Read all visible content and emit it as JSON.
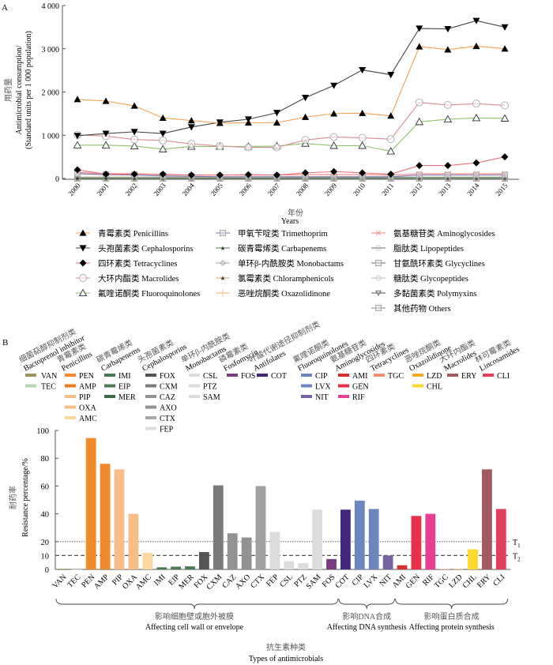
{
  "chart_data": [
    {
      "panel_label": "A",
      "type": "line",
      "ylabel_cn": "用药量",
      "ylabel_en_1": "Antimicrobial consumption/",
      "ylabel_en_2": "(Standard units per 1 000 population)",
      "xlabel_cn": "年份",
      "xlabel_en": "Years",
      "ylim": [
        0,
        4000
      ],
      "yticks": [
        0,
        1000,
        2000,
        3000,
        4000
      ],
      "ytick_labels": [
        "0",
        "1 000",
        "2 000",
        "3 000",
        "4 000"
      ],
      "x": [
        "2000",
        "2001",
        "2002",
        "2003",
        "2004",
        "2005",
        "2006",
        "2007",
        "2008",
        "2009",
        "2010",
        "2011",
        "2012",
        "2013",
        "2014",
        "2015"
      ],
      "series": [
        {
          "cn": "青霉素类",
          "en": "Penicillins",
          "color": "#f5a050",
          "marker": "triangle-up-filled",
          "values": [
            1830,
            1790,
            1680,
            1400,
            1340,
            1280,
            1290,
            1290,
            1420,
            1500,
            1510,
            1450,
            3050,
            2980,
            3060,
            3000
          ]
        },
        {
          "cn": "头孢菌素类",
          "en": "Cephalosporins",
          "color": "#444444",
          "marker": "triangle-down-filled",
          "values": [
            990,
            1040,
            1080,
            1040,
            1190,
            1300,
            1370,
            1520,
            1870,
            2150,
            2510,
            2400,
            3470,
            3460,
            3650,
            3500
          ]
        },
        {
          "cn": "四环素类",
          "en": "Tetracyclines",
          "color": "#e8737a",
          "marker": "diamond-filled",
          "values": [
            200,
            100,
            100,
            100,
            80,
            80,
            90,
            80,
            130,
            160,
            130,
            100,
            300,
            300,
            360,
            500
          ]
        },
        {
          "cn": "大环内酯类",
          "en": "Macrolides",
          "color": "#d98a92",
          "marker": "circle-open",
          "values": [
            1010,
            980,
            900,
            880,
            800,
            750,
            720,
            720,
            890,
            960,
            940,
            910,
            1760,
            1700,
            1730,
            1690
          ]
        },
        {
          "cn": "氟喹诺酮类",
          "en": "Fluoroquinolones",
          "color": "#8cc46a",
          "marker": "triangle-up-open",
          "values": [
            770,
            770,
            750,
            680,
            740,
            740,
            740,
            750,
            810,
            760,
            760,
            630,
            1310,
            1370,
            1400,
            1390
          ]
        },
        {
          "cn": "甲氧苄啶类",
          "en": "Trimethoprim",
          "color": "#7d6cb0",
          "marker": "square-plus",
          "values": [
            110,
            90,
            80,
            60,
            50,
            40,
            40,
            40,
            40,
            40,
            40,
            40,
            80,
            80,
            80,
            80
          ]
        },
        {
          "cn": "碳青霉烯类",
          "en": "Carbapenems",
          "color": "#4a8a4a",
          "marker": "star-small",
          "values": [
            5,
            5,
            5,
            5,
            5,
            5,
            5,
            5,
            10,
            10,
            10,
            10,
            15,
            15,
            15,
            15
          ]
        },
        {
          "cn": "单环β-内酰胺类",
          "en": "Monobactams",
          "color": "#aaaaaa",
          "marker": "diamond-open",
          "values": [
            2,
            2,
            2,
            2,
            2,
            2,
            2,
            2,
            2,
            2,
            2,
            2,
            2,
            2,
            2,
            2
          ]
        },
        {
          "cn": "氯霉素类",
          "en": "Chloramphenicols",
          "color": "#f5a050",
          "marker": "star-filled",
          "values": [
            10,
            10,
            10,
            10,
            10,
            10,
            10,
            10,
            10,
            10,
            10,
            10,
            10,
            10,
            10,
            10
          ]
        },
        {
          "cn": "恶唑烷酮类",
          "en": "Oxazolidinone",
          "color": "#f5b070",
          "marker": "plus",
          "values": [
            0,
            0,
            0,
            0,
            0,
            0,
            0,
            0,
            5,
            5,
            5,
            5,
            10,
            10,
            10,
            10
          ]
        },
        {
          "cn": "氨基糖苷类",
          "en": "Aminoglycosides",
          "color": "#f08080",
          "marker": "x",
          "values": [
            140,
            110,
            110,
            90,
            80,
            80,
            80,
            80,
            90,
            90,
            90,
            80,
            110,
            110,
            110,
            110
          ]
        },
        {
          "cn": "脂肽类",
          "en": "Lipopeptides",
          "color": "#666666",
          "marker": "circle-line",
          "values": [
            0,
            0,
            0,
            0,
            0,
            0,
            0,
            0,
            0,
            0,
            0,
            0,
            1,
            1,
            1,
            1
          ]
        },
        {
          "cn": "甘氨酰环素类",
          "en": "Glycyclines",
          "color": "#666666",
          "marker": "square-line",
          "values": [
            0,
            0,
            0,
            0,
            0,
            0,
            0,
            0,
            0,
            0,
            0,
            0,
            1,
            1,
            1,
            1
          ]
        },
        {
          "cn": "糖肽类",
          "en": "Glycopeptides",
          "color": "#bbbbbb",
          "marker": "circle-open-light",
          "values": [
            20,
            20,
            20,
            20,
            20,
            20,
            20,
            20,
            20,
            20,
            20,
            20,
            25,
            25,
            25,
            25
          ]
        },
        {
          "cn": "多黏菌素类",
          "en": "Polymyxins",
          "color": "#555555",
          "marker": "triangle-down-open",
          "values": [
            3,
            3,
            3,
            3,
            3,
            3,
            3,
            3,
            3,
            3,
            3,
            3,
            3,
            3,
            3,
            3
          ]
        },
        {
          "cn": "其他药物",
          "en": "Others",
          "color": "#888888",
          "marker": "rect-line",
          "values": [
            30,
            30,
            30,
            30,
            30,
            30,
            30,
            30,
            30,
            30,
            30,
            30,
            30,
            30,
            30,
            30
          ]
        }
      ]
    },
    {
      "panel_label": "B",
      "type": "bar",
      "ylabel_cn": "耐药率",
      "ylabel_en": "Resistance percentage/%",
      "xlabel_cn": "抗生素种类",
      "xlabel_en": "Types of antimicrobials",
      "ylim": [
        0,
        100
      ],
      "yticks": [
        0,
        10,
        20,
        40,
        60,
        80,
        100
      ],
      "ytick_labels": [
        "0",
        "10",
        "20",
        "40",
        "60",
        "80",
        "100"
      ],
      "thresholds": [
        {
          "label": "T",
          "sub": "1",
          "value": 20,
          "style": "dotted"
        },
        {
          "label": "T",
          "sub": "2",
          "value": 10,
          "style": "dashed"
        }
      ],
      "categories": [
        "VAN",
        "TEC",
        "PEN",
        "AMP",
        "PIP",
        "OXA",
        "AMC",
        "IMI",
        "EIP",
        "MER",
        "FOX",
        "CXM",
        "CAZ",
        "AXO",
        "CTX",
        "FEP",
        "CSL",
        "PTZ",
        "SAM",
        "FOS",
        "COT",
        "CIP",
        "LVX",
        "NIT",
        "AMI",
        "GEN",
        "RIF",
        "TGC",
        "LZD",
        "CHL",
        "ERY",
        "CLI"
      ],
      "values": [
        0.5,
        0,
        94.5,
        76,
        72,
        40,
        12,
        1.5,
        2,
        2.2,
        12.5,
        60.5,
        26,
        23,
        60,
        27,
        6,
        4.5,
        43,
        7.5,
        43,
        49.5,
        43.5,
        10,
        3,
        38.5,
        40,
        0.3,
        0.2,
        14.5,
        72,
        43.5
      ],
      "colors": [
        "#9a9460",
        "#b9d4b0",
        "#f08a2a",
        "#f08a2a",
        "#f9be86",
        "#f9be86",
        "#fcd7a0",
        "#4a7a52",
        "#4a7a52",
        "#4a7a52",
        "#555555",
        "#7b7b7b",
        "#929292",
        "#929292",
        "#a0a0a0",
        "#dcdcdc",
        "#dcdcdc",
        "#dcdcdc",
        "#dcdcdc",
        "#7a3b80",
        "#44267a",
        "#6b87bd",
        "#6b87bd",
        "#7a62a0",
        "#d3302e",
        "#e8304a",
        "#e84090",
        "#f59070",
        "#f5a820",
        "#fcd92a",
        "#a35a5e",
        "#e2405a"
      ],
      "groups": [
        {
          "cn": "影响细胞壁或胞外被膜",
          "en": "Affecting cell wall or envelope",
          "from": "VAN",
          "to": "FOS"
        },
        {
          "cn": "影响DNA合成",
          "en": "Affecting DNA synthesis",
          "from": "COT",
          "to": "NIT"
        },
        {
          "cn": "影响蛋白质合成",
          "en": "Affecting protein synthesis",
          "from": "AMI",
          "to": "CLI"
        }
      ],
      "legend_classes": [
        {
          "cn": "细菌萜醇抑制剂类",
          "en": "Bactoprenol inhibitor",
          "items": [
            {
              "code": "VAN",
              "color": "#9a9460"
            },
            {
              "code": "TEC",
              "color": "#b9d4b0"
            }
          ]
        },
        {
          "cn": "青霉素类",
          "en": "Penicillins",
          "items": [
            {
              "code": "PEN",
              "color": "#f08a2a"
            },
            {
              "code": "AMP",
              "color": "#f07a1a"
            },
            {
              "code": "PIP",
              "color": "#f9be86"
            },
            {
              "code": "OXA",
              "color": "#f9be86"
            },
            {
              "code": "AMC",
              "color": "#fcd7a0"
            }
          ]
        },
        {
          "cn": "碳青霉烯类",
          "en": "Carbapenems",
          "items": [
            {
              "code": "IMI",
              "color": "#4a7a52"
            },
            {
              "code": "EIP",
              "color": "#4a7a52"
            },
            {
              "code": "MER",
              "color": "#3e6a46"
            }
          ]
        },
        {
          "cn": "头孢菌素类",
          "en": "Cephalosporins",
          "items": [
            {
              "code": "FOX",
              "color": "#555555"
            },
            {
              "code": "CXM",
              "color": "#7b7b7b"
            },
            {
              "code": "CAZ",
              "color": "#929292"
            },
            {
              "code": "AXO",
              "color": "#929292"
            },
            {
              "code": "CTX",
              "color": "#a8a8a8"
            },
            {
              "code": "FEP",
              "color": "#dcdcdc"
            }
          ]
        },
        {
          "cn": "单环β-内酰胺类",
          "en": "Monobactams",
          "items": [
            {
              "code": "CSL",
              "color": "#dcdcdc"
            },
            {
              "code": "PTZ",
              "color": "#dcdcdc"
            },
            {
              "code": "SAM",
              "color": "#dcdcdc"
            }
          ]
        },
        {
          "cn": "磷霉素类",
          "en": "Fosfomycin",
          "items": [
            {
              "code": "FOS",
              "color": "#7a3b80"
            }
          ]
        },
        {
          "cn": "叶酸代谢途径抑制剂类",
          "en": "Antifolates",
          "items": [
            {
              "code": "COT",
              "color": "#44267a"
            }
          ]
        },
        {
          "cn": "氟喹诺酮类",
          "en": "Fluoroquinolones",
          "items": [
            {
              "code": "CIP",
              "color": "#6b87bd"
            },
            {
              "code": "LVX",
              "color": "#6b87bd"
            },
            {
              "code": "NIT",
              "color": "#7a62a0"
            }
          ]
        },
        {
          "cn": "氨基糖苷类",
          "en": "Aminoglycosides",
          "items": [
            {
              "code": "AMI",
              "color": "#d3302e"
            },
            {
              "code": "GEN",
              "color": "#e8304a"
            },
            {
              "code": "RIF",
              "color": "#e84090"
            }
          ]
        },
        {
          "cn": "四环素类",
          "en": "Tetracyclines",
          "items": [
            {
              "code": "TGC",
              "color": "#f59070"
            }
          ]
        },
        {
          "cn": "恶唑烷酮类",
          "en": "Oxazolidinone",
          "items": [
            {
              "code": "LZD",
              "color": "#f5a820"
            },
            {
              "code": "CHL",
              "color": "#fcd92a"
            }
          ]
        },
        {
          "cn": "大环内酯类",
          "en": "Macrolides",
          "items": [
            {
              "code": "ERY",
              "color": "#a35a5e"
            }
          ]
        },
        {
          "cn": "林可霉素类",
          "en": "Lincosamides",
          "items": [
            {
              "code": "CLI",
              "color": "#e2405a"
            }
          ]
        }
      ]
    }
  ]
}
